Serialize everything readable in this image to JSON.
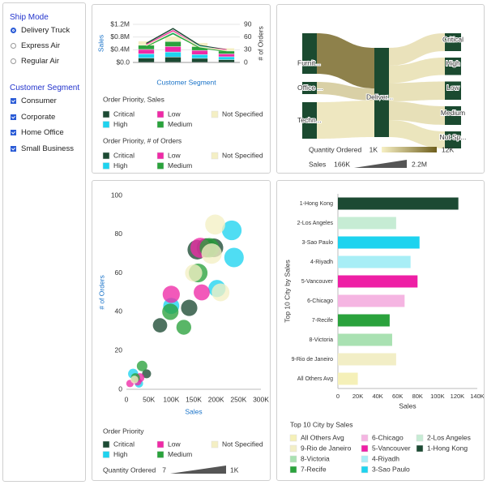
{
  "filters": {
    "ship_mode": {
      "title": "Ship Mode",
      "options": [
        "Delivery Truck",
        "Express Air",
        "Regular Air"
      ],
      "selected": [
        true,
        false,
        false
      ]
    },
    "customer_segment": {
      "title": "Customer Segment",
      "options": [
        "Consumer",
        "Corporate",
        "Home Office",
        "Small Business"
      ],
      "checked": [
        true,
        true,
        true,
        true
      ]
    }
  },
  "chart_data": [
    {
      "type": "combo",
      "x_label": "Customer Segment",
      "y_label": "Sales",
      "y2_label": "# of Orders",
      "categories": [
        null,
        null,
        null,
        null
      ],
      "ylim": [
        0,
        1200000
      ],
      "yticks": [
        {
          "value": 0,
          "label": "$0.0"
        },
        {
          "value": 400000,
          "label": "$0.4M"
        },
        {
          "value": 800000,
          "label": "$0.8M"
        },
        {
          "value": 1200000,
          "label": "$1.2M"
        }
      ],
      "y2lim": [
        0,
        90
      ],
      "y2ticks": [
        0,
        30,
        60,
        90
      ],
      "grid": true,
      "legend_titles": [
        "Order Priority, Sales",
        "Order Priority, # of Orders"
      ],
      "series": [
        {
          "name": "Critical",
          "color": "#1c4a33",
          "values": [
            140000,
            170000,
            130000,
            90000
          ]
        },
        {
          "name": "High",
          "color": "#1ed3ef",
          "values": [
            130000,
            160000,
            120000,
            90000
          ]
        },
        {
          "name": "Low",
          "color": "#ee2aa6",
          "values": [
            140000,
            170000,
            130000,
            90000
          ]
        },
        {
          "name": "Medium",
          "color": "#2aa23c",
          "values": [
            130000,
            160000,
            120000,
            90000
          ]
        },
        {
          "name": "Not Specified",
          "color": "#f4efc4",
          "values": [
            130000,
            160000,
            120000,
            90000
          ]
        },
        {
          "name": "Critical",
          "color": "#1c4a33",
          "axis": "y2",
          "values": [
            45,
            80,
            40,
            30
          ]
        },
        {
          "name": "High",
          "color": "#1ed3ef",
          "axis": "y2",
          "values": [
            40,
            70,
            38,
            28
          ]
        },
        {
          "name": "Low",
          "color": "#ee2aa6",
          "axis": "y2",
          "values": [
            42,
            75,
            36,
            30
          ]
        },
        {
          "name": "Medium",
          "color": "#2aa23c",
          "axis": "y2",
          "values": [
            38,
            68,
            35,
            26
          ]
        },
        {
          "name": "Not Specified",
          "color": "#f4efc4",
          "axis": "y2",
          "values": [
            40,
            72,
            37,
            28
          ]
        }
      ]
    },
    {
      "type": "sankey",
      "sources": [
        {
          "label": "Furnit...",
          "value": 1000000,
          "quantity": 11000
        },
        {
          "label": "Office ...",
          "value": 300000,
          "quantity": 4000
        },
        {
          "label": "Techn...",
          "value": 900000,
          "quantity": 2000
        }
      ],
      "hub": {
        "label": "Deliver..."
      },
      "targets": [
        {
          "label": "Critical",
          "value": 440000,
          "quantity": 2400
        },
        {
          "label": "High",
          "value": 430000,
          "quantity": 2300
        },
        {
          "label": "Low",
          "value": 450000,
          "quantity": 2500
        },
        {
          "label": "Medium",
          "value": 460000,
          "quantity": 2600
        },
        {
          "label": "Not Sp...",
          "value": 420000,
          "quantity": 2200
        }
      ],
      "color_scale": {
        "title": "Quantity Ordered",
        "min": {
          "value": 1000,
          "label": "1K"
        },
        "max": {
          "value": 12000,
          "label": "12K"
        },
        "colors": [
          "#f7f0c4",
          "#6e5e1c"
        ]
      },
      "size_scale": {
        "title": "Sales",
        "min": {
          "value": 166000,
          "label": "166K"
        },
        "max": {
          "value": 2200000,
          "label": "2.2M"
        }
      }
    },
    {
      "type": "scatter",
      "x_label": "Sales",
      "y_label": "# of Orders",
      "legend_title": "Order Priority",
      "xlim": [
        0,
        300000
      ],
      "xticks": [
        0,
        {
          "value": 50000,
          "label": "50K"
        },
        {
          "value": 100000,
          "label": "100K"
        },
        {
          "value": 150000,
          "label": "150K"
        },
        {
          "value": 200000,
          "label": "200K"
        },
        {
          "value": 250000,
          "label": "250K"
        },
        {
          "value": 300000,
          "label": "300K"
        }
      ],
      "ylim": [
        0,
        100
      ],
      "yticks": [
        0,
        20,
        40,
        60,
        80,
        100
      ],
      "size_title": "Quantity Ordered",
      "size_range": [
        7,
        {
          "value": 1000,
          "label": "1K"
        }
      ],
      "series": [
        {
          "name": "Critical",
          "color": "#1c4a33",
          "x": [
            75000,
            140000,
            158000,
            178000,
            195000,
            45000
          ],
          "values": [
            33,
            42,
            72,
            73,
            73,
            8
          ],
          "sizes": [
            180,
            260,
            420,
            400,
            380,
            40
          ]
        },
        {
          "name": "High",
          "color": "#1ed3ef",
          "x": [
            235000,
            240000,
            202000,
            100000,
            15000,
            28000
          ],
          "values": [
            82,
            68,
            52,
            43,
            8,
            3
          ],
          "sizes": [
            430,
            420,
            300,
            250,
            60,
            30
          ]
        },
        {
          "name": "Low",
          "color": "#ee2aa6",
          "x": [
            100000,
            165000,
            168000,
            30000,
            8000,
            25000
          ],
          "values": [
            49,
            73,
            50,
            6,
            3,
            4
          ],
          "sizes": [
            300,
            450,
            250,
            40,
            20,
            25
          ]
        },
        {
          "name": "Medium",
          "color": "#2aa23c",
          "x": [
            98000,
            128000,
            160000,
            185000,
            35000,
            20000
          ],
          "values": [
            40,
            32,
            60,
            73,
            12,
            6
          ],
          "sizes": [
            260,
            200,
            380,
            420,
            70,
            40
          ]
        },
        {
          "name": "Not Specified",
          "color": "#f4efc4",
          "x": [
            198000,
            190000,
            210000,
            18000,
            150000
          ],
          "values": [
            85,
            70,
            50,
            5,
            60
          ],
          "sizes": [
            450,
            470,
            330,
            25,
            300
          ]
        }
      ]
    },
    {
      "type": "hbar",
      "x_label": "Sales",
      "y_label": "Top 10 City by Sales",
      "legend_title": "Top 10 City by Sales",
      "categories": [
        "1-Hong Kong",
        "2-Los Angeles",
        "3-Sao Paulo",
        "4-Riyadh",
        "5-Vancouver",
        "6-Chicago",
        "7-Recife",
        "8-Victoria",
        "9-Rio de Janeiro",
        "All Others Avg"
      ],
      "values": [
        121000,
        58500,
        82000,
        73000,
        80000,
        67000,
        52000,
        54500,
        58500,
        20000
      ],
      "colors": [
        "#1c4a33",
        "#c6ecd4",
        "#1ed3ef",
        "#a8eef6",
        "#ee1fa5",
        "#f5b5e2",
        "#2aa23c",
        "#a9e1b2",
        "#f2eec6",
        "#f5f0b8"
      ],
      "xlim": [
        0,
        140000
      ],
      "xticks": [
        0,
        {
          "value": 20000,
          "label": "20K"
        },
        {
          "value": 40000,
          "label": "40K"
        },
        {
          "value": 60000,
          "label": "60K"
        },
        {
          "value": 80000,
          "label": "80K"
        },
        {
          "value": 100000,
          "label": "100K"
        },
        {
          "value": 120000,
          "label": "120K"
        },
        {
          "value": 140000,
          "label": "140K"
        }
      ]
    }
  ]
}
